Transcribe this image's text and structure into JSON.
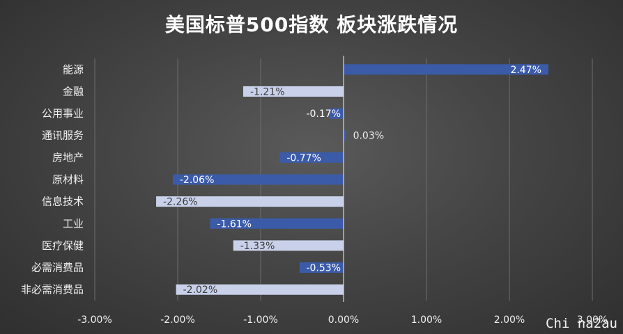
{
  "chart_data": {
    "type": "bar",
    "orientation": "horizontal",
    "title": "美国标普500指数 板块涨跌情况",
    "categories": [
      "能源",
      "金融",
      "公用事业",
      "通讯服务",
      "房地产",
      "原材料",
      "信息技术",
      "工业",
      "医疗保健",
      "必需消费品",
      "非必需消费品"
    ],
    "values": [
      2.47,
      -1.21,
      -0.17,
      0.03,
      -0.77,
      -2.06,
      -2.26,
      -1.61,
      -1.33,
      -0.53,
      -2.02
    ],
    "data_labels": [
      "2.47%",
      "-1.21%",
      "-0.17%",
      "0.03%",
      "-0.77%",
      "-2.06%",
      "-2.26%",
      "-1.61%",
      "-1.33%",
      "-0.53%",
      "-2.02%"
    ],
    "bar_colors": [
      "#3b5ba9",
      "#c9d1ea",
      "#3b5ba9",
      "#3b5ba9",
      "#3b5ba9",
      "#3b5ba9",
      "#c9d1ea",
      "#3b5ba9",
      "#c9d1ea",
      "#3b5ba9",
      "#c9d1ea"
    ],
    "xlim": [
      -3,
      3
    ],
    "xticks": [
      -3,
      -2,
      -1,
      0,
      1,
      2,
      3
    ],
    "xtick_labels": [
      "-3.00%",
      "-2.00%",
      "-1.00%",
      "0.00%",
      "1.00%",
      "2.00%",
      "3.00%"
    ],
    "grid": true,
    "legend": "none"
  },
  "watermark": "Chi na2au"
}
